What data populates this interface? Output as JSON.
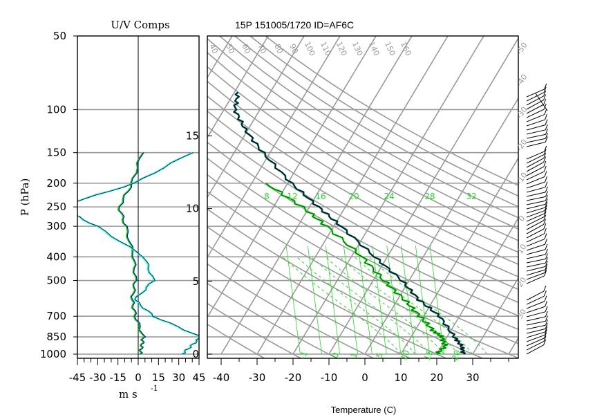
{
  "colors": {
    "grid": "#999999",
    "temp": "#000000",
    "temp2": "#006666",
    "dew": "#006600",
    "dew2": "#22ee22",
    "mix": "#22dd22",
    "u": "#00ffff",
    "v": "#00cc00",
    "u2": "#0000cc"
  },
  "left_panel": {
    "title": "U/V Comps",
    "ylabel": "P (hPa)",
    "xlabel": "m s",
    "xlabel_sup": "-1",
    "pressure_levels": [
      "50",
      "100",
      "150",
      "200",
      "250",
      "300",
      "400",
      "500",
      "700",
      "850",
      "1000"
    ],
    "xticks": [
      "-45",
      "-30",
      "-15",
      "0",
      "15",
      "30",
      "45"
    ]
  },
  "right_panel": {
    "title": "15P 151005/1720 ID=AF6C",
    "xlabel": "Temperature (C)",
    "xticks": [
      "-40",
      "-30",
      "-20",
      "-10",
      "0",
      "10",
      "20",
      "30"
    ],
    "height_ticks": [
      "0",
      "5",
      "10",
      "15"
    ],
    "mixing_ratio_labels": [
      "8",
      "12",
      "16",
      "20",
      "24",
      "28",
      "32"
    ],
    "theta_labels": [
      "40",
      "50",
      "60",
      "70",
      "80",
      "90",
      "100",
      "110",
      "120",
      "130",
      "140",
      "150",
      "160"
    ],
    "theta_e_labels": [
      "-50",
      "-40",
      "-30",
      "-20",
      "-10",
      "0",
      "10",
      "20",
      "30"
    ],
    "bottom_labels": [
      "-1",
      "0",
      "1",
      "5",
      "10",
      "15",
      "20"
    ]
  },
  "chart_data": {
    "type": "line",
    "title": "15P 151005/1720 ID=AF6C",
    "xlabel": "Temperature (C)",
    "ylabel": "P (hPa)",
    "xlim": [
      -44,
      42
    ],
    "ylim": [
      1000,
      50
    ],
    "series": [
      {
        "name": "",
        "p": [
          1000,
          925,
          850,
          700,
          600,
          500,
          400,
          300,
          250,
          200,
          150,
          120,
          100,
          85
        ],
        "values": [
          27.5,
          25.5,
          22,
          14.5,
          6,
          -2,
          -13.5,
          -28,
          -37.5,
          -49,
          -62,
          -71,
          -77,
          -79
        ]
      },
      {
        "name": "",
        "p": [
          1000,
          925,
          850,
          800,
          700,
          600,
          500,
          400,
          300,
          250,
          200
        ],
        "values": [
          20,
          21,
          18.5,
          15,
          9,
          2,
          -7,
          -17,
          -32,
          -42,
          -56
        ]
      }
    ],
    "wind_profile": {
      "u": [
        1,
        2,
        3,
        -2,
        -4,
        -2,
        -3,
        -8,
        -12,
        -4,
        2
      ],
      "v": [
        10,
        6,
        10,
        0,
        3,
        5,
        2,
        -4,
        -5,
        0,
        4
      ]
    }
  }
}
